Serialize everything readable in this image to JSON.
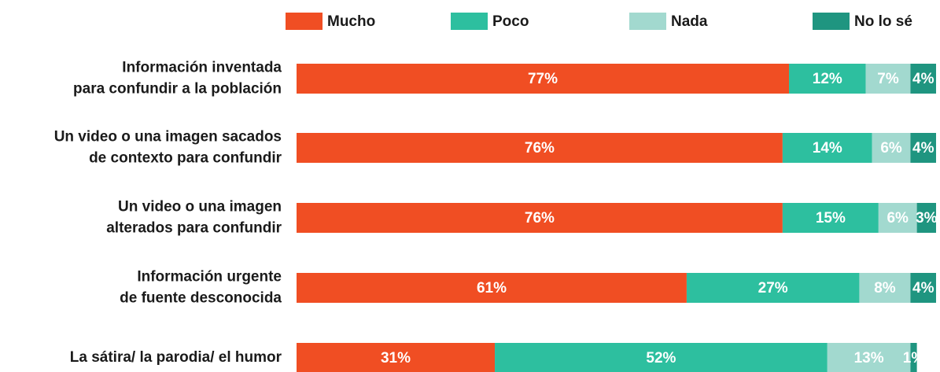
{
  "chart_data": {
    "type": "stacked-bar-horizontal",
    "categories": [
      [
        "Información inventada",
        "para confundir a la población"
      ],
      [
        "Un video o una imagen sacados",
        "de contexto para confundir"
      ],
      [
        "Un video o una imagen",
        "alterados para confundir"
      ],
      [
        "Información urgente",
        "de fuente desconocida"
      ],
      [
        "La sátira/ la parodia/ el humor"
      ]
    ],
    "xlim": [
      0,
      100
    ],
    "series": [
      {
        "name": "Mucho",
        "color": "#f04e23",
        "values": [
          77,
          76,
          76,
          61,
          31
        ],
        "value_labels": [
          "77%",
          "76%",
          "76%",
          "61%",
          "31%"
        ]
      },
      {
        "name": "Poco",
        "color": "#2dbf9f",
        "values": [
          12,
          14,
          15,
          27,
          52
        ],
        "value_labels": [
          "12%",
          "14%",
          "15%",
          "27%",
          "52%"
        ]
      },
      {
        "name": "Nada",
        "color": "#a2d9cf",
        "values": [
          7,
          6,
          6,
          8,
          13
        ],
        "value_labels": [
          "7%",
          "6%",
          "6%",
          "8%",
          "13%"
        ]
      },
      {
        "name": "No lo sé",
        "color": "#1f9580",
        "values": [
          4,
          4,
          3,
          4,
          1
        ],
        "value_labels": [
          "4%",
          "4%",
          "3%",
          "4%",
          "1%"
        ]
      }
    ]
  }
}
